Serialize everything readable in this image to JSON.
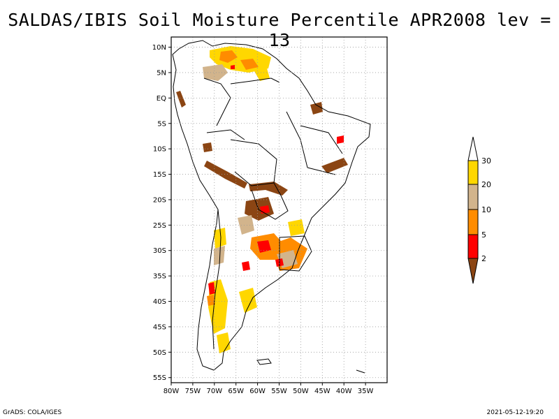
{
  "title": "SALDAS/IBIS Soil Moisture Percentile APR2008 lev = 13",
  "map": {
    "lon_range": [
      -80,
      -30
    ],
    "lat_range": [
      -56,
      12
    ],
    "lat_ticks": [
      {
        "value": 10,
        "label": "10N"
      },
      {
        "value": 5,
        "label": "5N"
      },
      {
        "value": 0,
        "label": "EQ"
      },
      {
        "value": -5,
        "label": "5S"
      },
      {
        "value": -10,
        "label": "10S"
      },
      {
        "value": -15,
        "label": "15S"
      },
      {
        "value": -20,
        "label": "20S"
      },
      {
        "value": -25,
        "label": "25S"
      },
      {
        "value": -30,
        "label": "30S"
      },
      {
        "value": -35,
        "label": "35S"
      },
      {
        "value": -40,
        "label": "40S"
      },
      {
        "value": -45,
        "label": "45S"
      },
      {
        "value": -50,
        "label": "50S"
      },
      {
        "value": -55,
        "label": "55S"
      }
    ],
    "lon_ticks": [
      {
        "value": -80,
        "label": "80W"
      },
      {
        "value": -75,
        "label": "75W"
      },
      {
        "value": -70,
        "label": "70W"
      },
      {
        "value": -65,
        "label": "65W"
      },
      {
        "value": -60,
        "label": "60W"
      },
      {
        "value": -55,
        "label": "55W"
      },
      {
        "value": -50,
        "label": "50W"
      },
      {
        "value": -45,
        "label": "45W"
      },
      {
        "value": -40,
        "label": "40W"
      },
      {
        "value": -35,
        "label": "35W"
      }
    ],
    "grid": true,
    "grid_style": "dotted"
  },
  "colorbar": {
    "orientation": "vertical",
    "placement": "right",
    "labels": [
      "2",
      "5",
      "10",
      "20",
      "30"
    ],
    "colors": [
      "#8b4513",
      "#ff0000",
      "#ff8c00",
      "#d2b48c",
      "#ffd700",
      "#ffffff"
    ]
  },
  "colors": {
    "below_2": "#8b4513",
    "p2_5": "#ff0000",
    "p5_10": "#ff8c00",
    "p10_20": "#d2b48c",
    "p20_30": "#ffd700"
  },
  "footer_left": "GrADS: COLA/IGES",
  "footer_right": "2021-05-12-19:20"
}
